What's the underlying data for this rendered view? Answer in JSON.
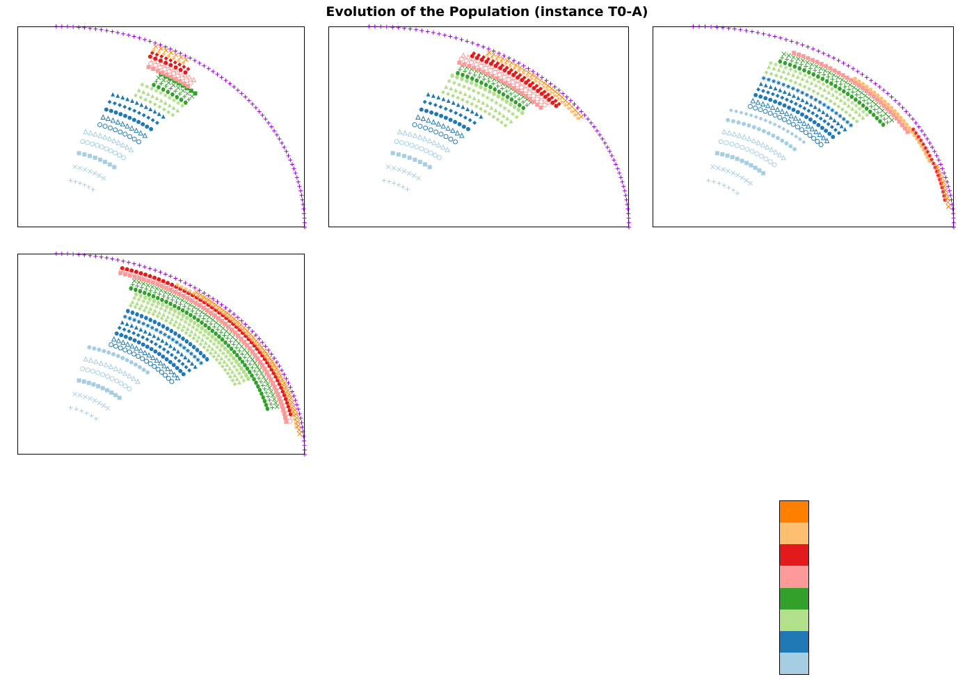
{
  "title": "Evolution of the Population (instance T0-A)",
  "colors": {
    "pareto_front": "#9400d3",
    "palette": [
      "#a6cee3",
      "#1f78b4",
      "#b2df8a",
      "#33a02c",
      "#fb9a99",
      "#e31a1c",
      "#fdbf6f",
      "#ff7f00"
    ]
  },
  "chart_data": [
    {
      "type": "scatter",
      "panel": 1,
      "xlim": [
        0,
        1
      ],
      "ylim": [
        0,
        1
      ],
      "grid": false,
      "axis_ticks": false,
      "front": {
        "name": "",
        "color": "#9400d3",
        "marker": "+",
        "theta_range_deg": [
          0,
          90
        ],
        "radius": 1.0
      },
      "generations": [
        {
          "color": "#a6cee3",
          "rings": [
            0.24,
            0.31,
            0.38,
            0.44,
            0.49
          ],
          "theta_range_deg": [
            52,
            76
          ]
        },
        {
          "color": "#1f78b4",
          "rings": [
            0.54,
            0.58,
            0.62,
            0.66,
            0.7
          ],
          "theta_range_deg": [
            52,
            71
          ]
        },
        {
          "color": "#b2df8a",
          "rings": [
            0.73,
            0.76,
            0.79
          ],
          "theta_range_deg": [
            50,
            64
          ]
        },
        {
          "color": "#33a02c",
          "rings": [
            0.81,
            0.83,
            0.85,
            0.87
          ],
          "theta_range_deg": [
            50,
            61
          ]
        },
        {
          "color": "#fb9a99",
          "rings": [
            0.88,
            0.9,
            0.92
          ],
          "theta_range_deg": [
            53,
            65
          ]
        },
        {
          "color": "#e31a1c",
          "rings": [
            0.93,
            0.95
          ],
          "theta_range_deg": [
            56,
            66
          ]
        },
        {
          "color": "#fdbf6f",
          "rings": [
            0.965
          ],
          "theta_range_deg": [
            58,
            66
          ]
        },
        {
          "color": "#ff7f00",
          "rings": [
            0.985
          ],
          "theta_range_deg": [
            58,
            66
          ]
        }
      ]
    },
    {
      "type": "scatter",
      "panel": 2,
      "xlim": [
        0,
        1
      ],
      "ylim": [
        0,
        1
      ],
      "grid": false,
      "axis_ticks": false,
      "front": {
        "name": "",
        "color": "#9400d3",
        "marker": "+",
        "theta_range_deg": [
          0,
          90
        ],
        "radius": 1.0
      },
      "generations": [
        {
          "color": "#a6cee3",
          "rings": [
            0.24,
            0.31,
            0.38,
            0.44,
            0.49
          ],
          "theta_range_deg": [
            52,
            76
          ]
        },
        {
          "color": "#1f78b4",
          "rings": [
            0.54,
            0.58,
            0.62,
            0.66,
            0.7
          ],
          "theta_range_deg": [
            52,
            71
          ]
        },
        {
          "color": "#b2df8a",
          "rings": [
            0.73,
            0.76,
            0.79,
            0.82
          ],
          "theta_range_deg": [
            44,
            67
          ]
        },
        {
          "color": "#33a02c",
          "rings": [
            0.84,
            0.86,
            0.88
          ],
          "theta_range_deg": [
            45,
            66
          ]
        },
        {
          "color": "#fb9a99",
          "rings": [
            0.89,
            0.91,
            0.93
          ],
          "theta_range_deg": [
            42,
            67
          ]
        },
        {
          "color": "#e31a1c",
          "rings": [
            0.94,
            0.955
          ],
          "theta_range_deg": [
            40,
            65
          ]
        },
        {
          "color": "#fdbf6f",
          "rings": [
            0.97
          ],
          "theta_range_deg": [
            34,
            62
          ]
        },
        {
          "color": "#ff7f00",
          "rings": [
            0.985
          ],
          "theta_range_deg": [
            34,
            62
          ]
        }
      ]
    },
    {
      "type": "scatter",
      "panel": 3,
      "xlim": [
        0,
        1
      ],
      "ylim": [
        0,
        1
      ],
      "grid": false,
      "axis_ticks": false,
      "front": {
        "name": "",
        "color": "#9400d3",
        "marker": "+",
        "theta_range_deg": [
          0,
          90
        ],
        "radius": 1.0
      },
      "generations": [
        {
          "color": "#a6cee3",
          "rings": [
            0.24,
            0.31,
            0.38,
            0.44,
            0.49,
            0.55,
            0.6
          ],
          "theta_range_deg": [
            45,
            76
          ]
        },
        {
          "color": "#1f78b4",
          "rings": [
            0.64,
            0.67,
            0.7,
            0.73,
            0.76,
            0.79
          ],
          "theta_range_deg": [
            40,
            70
          ]
        },
        {
          "color": "#b2df8a",
          "rings": [
            0.82,
            0.85,
            0.87
          ],
          "theta_range_deg": [
            40,
            70
          ]
        },
        {
          "color": "#33a02c",
          "rings": [
            0.89,
            0.91,
            0.93
          ],
          "theta_range_deg": [
            35,
            68
          ]
        },
        {
          "color": "#fb9a99",
          "rings": [
            0.95
          ],
          "theta_range_deg": [
            30,
            66
          ]
        },
        {
          "color": "#fdbf6f",
          "rings": [
            0.965
          ],
          "theta_range_deg": [
            20,
            50
          ]
        },
        {
          "color": "#e31a1c",
          "rings": [
            0.975
          ],
          "theta_range_deg": [
            8,
            30
          ]
        },
        {
          "color": "#ff7f00",
          "rings": [
            0.985
          ],
          "theta_range_deg": [
            6,
            18
          ]
        }
      ]
    },
    {
      "type": "scatter",
      "panel": 4,
      "xlim": [
        0,
        1
      ],
      "ylim": [
        0,
        1
      ],
      "grid": false,
      "axis_ticks": false,
      "front": {
        "name": "",
        "color": "#9400d3",
        "marker": "+",
        "theta_range_deg": [
          0,
          90
        ],
        "radius": 1.0
      },
      "generations": [
        {
          "color": "#a6cee3",
          "rings": [
            0.24,
            0.31,
            0.38,
            0.44,
            0.49,
            0.55
          ],
          "theta_range_deg": [
            48,
            76
          ]
        },
        {
          "color": "#1f78b4",
          "rings": [
            0.59,
            0.62,
            0.65,
            0.68,
            0.71,
            0.74,
            0.77
          ],
          "theta_range_deg": [
            38,
            68
          ]
        },
        {
          "color": "#b2df8a",
          "rings": [
            0.8,
            0.82,
            0.84,
            0.86
          ],
          "theta_range_deg": [
            26,
            68
          ]
        },
        {
          "color": "#33a02c",
          "rings": [
            0.88,
            0.9,
            0.92
          ],
          "theta_range_deg": [
            15,
            70
          ]
        },
        {
          "color": "#fb9a99",
          "rings": [
            0.94,
            0.955
          ],
          "theta_range_deg": [
            10,
            74
          ]
        },
        {
          "color": "#e31a1c",
          "rings": [
            0.965
          ],
          "theta_range_deg": [
            12,
            74
          ]
        },
        {
          "color": "#fdbf6f",
          "rings": [
            0.975
          ],
          "theta_range_deg": [
            8,
            60
          ]
        },
        {
          "color": "#ff7f00",
          "rings": [
            0.985
          ],
          "theta_range_deg": [
            6,
            55
          ]
        }
      ]
    }
  ],
  "colorbar": {
    "colors_bottom_to_top": [
      "#a6cee3",
      "#1f78b4",
      "#b2df8a",
      "#33a02c",
      "#fb9a99",
      "#e31a1c",
      "#fdbf6f",
      "#ff7f00"
    ]
  }
}
